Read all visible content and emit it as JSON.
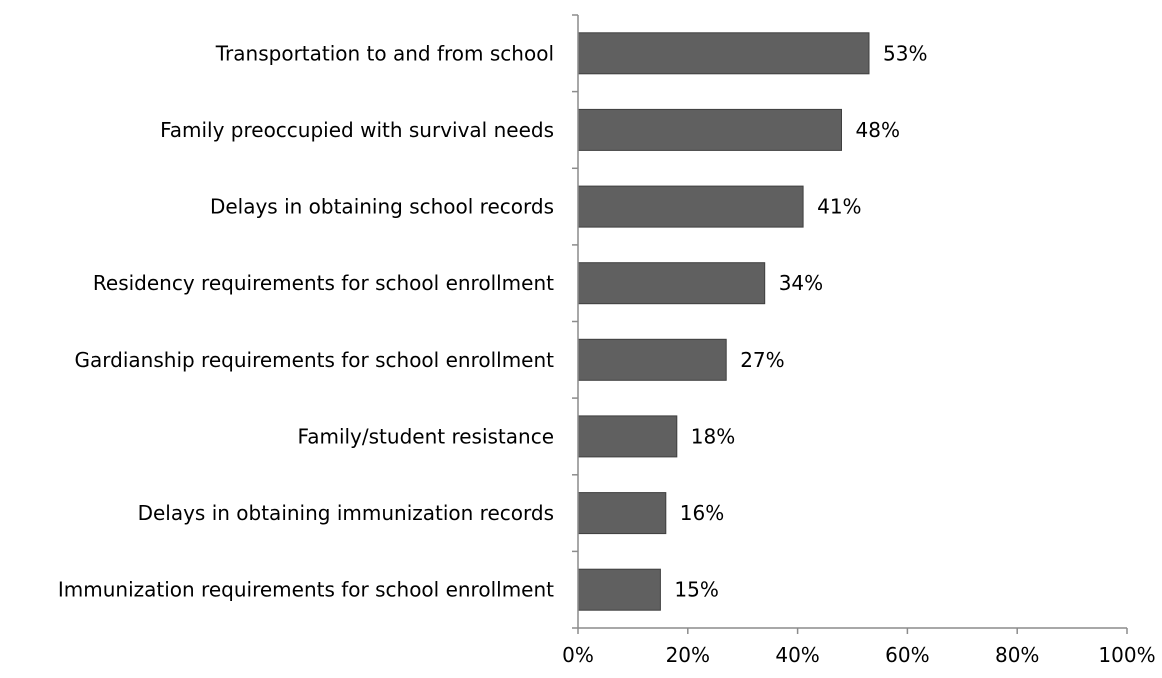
{
  "chart_data": {
    "type": "bar",
    "orientation": "horizontal",
    "categories": [
      "Transportation to and from school",
      "Family preoccupied with survival needs",
      "Delays in obtaining school records",
      "Residency requirements for school enrollment",
      "Gardianship requirements for school enrollment",
      "Family/student resistance",
      "Delays in obtaining immunization records",
      "Immunization requirements for school enrollment"
    ],
    "values": [
      53,
      48,
      41,
      34,
      27,
      18,
      16,
      15
    ],
    "data_labels": [
      "53%",
      "48%",
      "41%",
      "34%",
      "27%",
      "18%",
      "16%",
      "15%"
    ],
    "x_ticks": [
      0,
      20,
      40,
      60,
      80,
      100
    ],
    "x_tick_labels": [
      "0%",
      "20%",
      "40%",
      "60%",
      "80%",
      "100%"
    ],
    "xlim": [
      0,
      100
    ],
    "title": "",
    "xlabel": "",
    "ylabel": "",
    "grid": false,
    "legend": "none",
    "colors": {
      "bar": "#606060",
      "bar_stroke": "#3f3f3f",
      "axis": "#8c8c8c",
      "text": "#000000"
    }
  }
}
